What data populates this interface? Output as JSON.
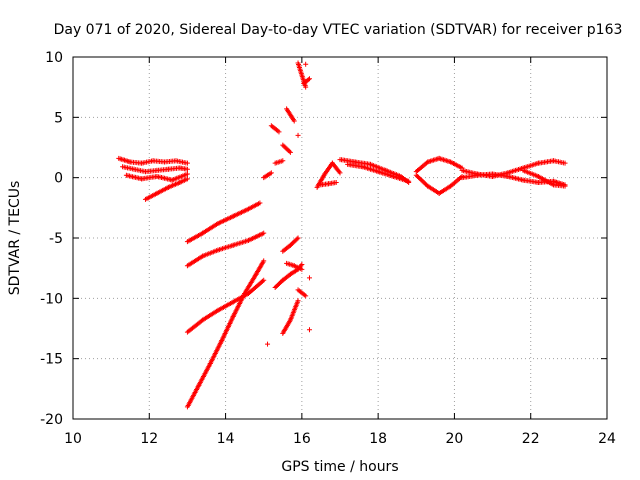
{
  "chart_data": {
    "type": "scatter",
    "title": "Day 071 of 2020, Sidereal Day-to-day VTEC variation (SDTVAR) for receiver p163",
    "xlabel": "GPS time / hours",
    "ylabel": "SDTVAR / TECUs",
    "xlim": [
      10,
      24
    ],
    "ylim": [
      -20,
      10
    ],
    "xticks": [
      "10",
      "12",
      "14",
      "16",
      "18",
      "20",
      "22",
      "24"
    ],
    "yticks": [
      "10",
      "5",
      "0",
      "-5",
      "-10",
      "-15",
      "-20"
    ],
    "grid": true,
    "marker": "+",
    "color": "#ff0000",
    "segments": [
      {
        "x": [
          11.2,
          11.5,
          11.8,
          12.1,
          12.4,
          12.7,
          13.0
        ],
        "y": [
          1.6,
          1.3,
          1.2,
          1.4,
          1.3,
          1.4,
          1.2
        ]
      },
      {
        "x": [
          11.3,
          11.6,
          11.9,
          12.2,
          12.5,
          12.8,
          13.0
        ],
        "y": [
          0.9,
          0.7,
          0.5,
          0.6,
          0.7,
          0.8,
          0.7
        ]
      },
      {
        "x": [
          11.4,
          11.8,
          12.2,
          12.6,
          13.0
        ],
        "y": [
          0.2,
          -0.1,
          0.1,
          -0.2,
          0.3
        ]
      },
      {
        "x": [
          11.9,
          12.2,
          12.5,
          12.8,
          13.0
        ],
        "y": [
          -1.8,
          -1.3,
          -0.8,
          -0.4,
          -0.1
        ]
      },
      {
        "x": [
          13.0,
          13.4,
          13.8,
          14.2,
          14.6,
          14.9
        ],
        "y": [
          -5.3,
          -4.6,
          -3.8,
          -3.2,
          -2.6,
          -2.1
        ]
      },
      {
        "x": [
          13.0,
          13.4,
          13.8,
          14.2,
          14.6,
          15.0
        ],
        "y": [
          -7.3,
          -6.5,
          -6.0,
          -5.6,
          -5.2,
          -4.6
        ]
      },
      {
        "x": [
          13.0,
          13.4,
          13.8,
          14.2,
          14.6,
          15.0
        ],
        "y": [
          -12.8,
          -11.8,
          -11.0,
          -10.3,
          -9.6,
          -8.5
        ]
      },
      {
        "x": [
          13.0,
          13.3,
          13.6,
          13.9,
          14.2,
          14.5,
          14.8,
          15.0
        ],
        "y": [
          -19.0,
          -17.2,
          -15.4,
          -13.5,
          -11.5,
          -9.6,
          -8.0,
          -6.9
        ]
      },
      {
        "x": [
          15.0,
          15.2
        ],
        "y": [
          0.0,
          0.4
        ]
      },
      {
        "x": [
          15.3,
          15.5
        ],
        "y": [
          1.2,
          1.4
        ]
      },
      {
        "x": [
          15.5,
          15.7
        ],
        "y": [
          2.7,
          2.1
        ]
      },
      {
        "x": [
          15.6,
          15.8
        ],
        "y": [
          5.7,
          4.7
        ]
      },
      {
        "x": [
          15.2,
          15.4
        ],
        "y": [
          4.3,
          3.8
        ]
      },
      {
        "x": [
          15.9,
          16.1
        ],
        "y": [
          9.5,
          7.5
        ]
      },
      {
        "x": [
          16.05,
          16.2
        ],
        "y": [
          7.8,
          8.2
        ]
      },
      {
        "x": [
          16.1
        ],
        "y": [
          9.4
        ]
      },
      {
        "x": [
          15.9
        ],
        "y": [
          3.5
        ]
      },
      {
        "x": [
          15.3,
          15.5,
          15.7,
          15.9,
          16.0
        ],
        "y": [
          -9.1,
          -8.5,
          -8.0,
          -7.6,
          -7.2
        ]
      },
      {
        "x": [
          15.5,
          15.7,
          15.9
        ],
        "y": [
          -6.1,
          -5.6,
          -5.0
        ]
      },
      {
        "x": [
          15.6,
          15.8,
          16.0
        ],
        "y": [
          -7.1,
          -7.3,
          -7.6
        ]
      },
      {
        "x": [
          15.5,
          15.7,
          15.9
        ],
        "y": [
          -12.9,
          -11.8,
          -10.2
        ]
      },
      {
        "x": [
          15.9,
          16.1
        ],
        "y": [
          -9.3,
          -9.8
        ]
      },
      {
        "x": [
          16.2
        ],
        "y": [
          -8.3
        ]
      },
      {
        "x": [
          16.2
        ],
        "y": [
          -12.6
        ]
      },
      {
        "x": [
          15.1
        ],
        "y": [
          -13.8
        ]
      },
      {
        "x": [
          16.4,
          16.6,
          16.8,
          17.0
        ],
        "y": [
          -0.8,
          0.3,
          1.2,
          0.4
        ]
      },
      {
        "x": [
          16.5,
          16.7,
          16.9
        ],
        "y": [
          -0.6,
          -0.5,
          -0.4
        ]
      },
      {
        "x": [
          17.0,
          17.4,
          17.8,
          18.2,
          18.6,
          18.8
        ],
        "y": [
          1.5,
          1.3,
          1.1,
          0.6,
          0.1,
          -0.4
        ]
      },
      {
        "x": [
          17.2,
          17.6,
          18.0,
          18.4,
          18.8
        ],
        "y": [
          1.1,
          0.9,
          0.5,
          0.1,
          -0.3
        ]
      },
      {
        "x": [
          19.0,
          19.3,
          19.6,
          19.9,
          20.2
        ],
        "y": [
          0.5,
          1.3,
          1.6,
          1.3,
          0.8
        ]
      },
      {
        "x": [
          19.0,
          19.3,
          19.6,
          19.9,
          20.2
        ],
        "y": [
          0.2,
          -0.7,
          -1.3,
          -0.7,
          0.1
        ]
      },
      {
        "x": [
          20.2,
          20.6,
          21.0,
          21.4,
          21.8,
          22.2,
          22.6,
          22.9
        ],
        "y": [
          0.6,
          0.3,
          0.1,
          0.4,
          0.8,
          1.2,
          1.4,
          1.2
        ]
      },
      {
        "x": [
          20.2,
          20.6,
          21.0,
          21.4,
          21.8,
          22.2,
          22.6,
          22.9
        ],
        "y": [
          0.0,
          0.2,
          0.3,
          0.1,
          -0.2,
          -0.4,
          -0.3,
          -0.6
        ]
      },
      {
        "x": [
          21.8,
          22.2,
          22.6,
          22.9
        ],
        "y": [
          0.6,
          0.1,
          -0.6,
          -0.7
        ]
      }
    ]
  }
}
